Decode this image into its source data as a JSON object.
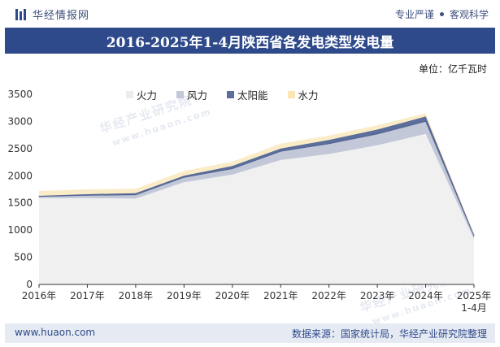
{
  "header": {
    "brand_name": "华经情报网",
    "tagline_left": "专业严谨",
    "tagline_right": "客观科学"
  },
  "title": "2016-2025年1-4月陕西省各发电类型发电量",
  "unit_label": "单位：亿千瓦时",
  "watermark_text": "华经产业研究院",
  "watermark_url": "www.huaon.com",
  "footer": {
    "url": "www.huaon.com",
    "source": "数据来源：国家统计局，华经产业研究院整理"
  },
  "colors": {
    "title_bar": "#2e4a8a",
    "thermal": "#f0f0f0",
    "wind": "#c2c8d8",
    "solar": "#5c6f9c",
    "hydro": "#fbecc8"
  },
  "chart_data": {
    "type": "area",
    "stacked": true,
    "categories": [
      "2016年",
      "2017年",
      "2018年",
      "2019年",
      "2020年",
      "2021年",
      "2022年",
      "2023年",
      "2024年",
      "2025年\n1-4月"
    ],
    "series": [
      {
        "name": "火力",
        "values": [
          1590,
          1590,
          1580,
          1880,
          2020,
          2290,
          2400,
          2560,
          2770,
          830
        ]
      },
      {
        "name": "风力",
        "values": [
          30,
          50,
          70,
          90,
          110,
          160,
          190,
          210,
          230,
          60
        ]
      },
      {
        "name": "太阳能",
        "values": [
          10,
          20,
          30,
          30,
          50,
          50,
          70,
          80,
          90,
          20
        ]
      },
      {
        "name": "水力",
        "values": [
          90,
          90,
          80,
          90,
          80,
          90,
          80,
          80,
          60,
          10
        ]
      }
    ],
    "y_ticks": [
      0,
      500,
      1000,
      1500,
      2000,
      2500,
      3000,
      3500
    ],
    "ylim": [
      0,
      3500
    ],
    "legend_position": "top"
  }
}
